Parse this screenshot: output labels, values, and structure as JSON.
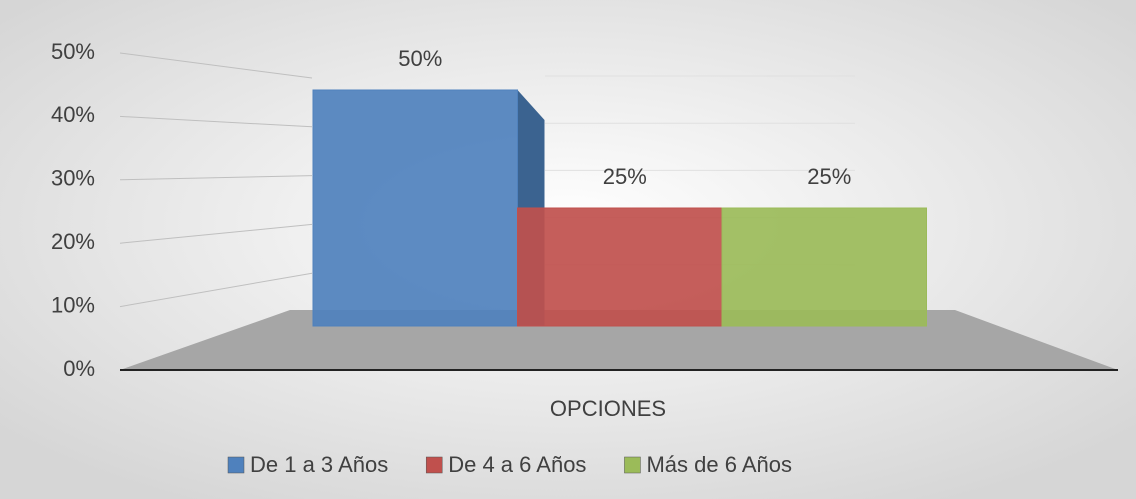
{
  "chart_data": {
    "type": "bar3d",
    "categories": [
      "OPCIONES"
    ],
    "series": [
      {
        "name": "De 1 a 3 Años",
        "color": "#4f81bd",
        "values": [
          50
        ],
        "value_labels": [
          "50%"
        ]
      },
      {
        "name": "De 4 a 6 Años",
        "color": "#c0504d",
        "values": [
          25
        ],
        "value_labels": [
          "25%"
        ]
      },
      {
        "name": "Más de 6 Años",
        "color": "#9bbb59",
        "values": [
          25
        ],
        "value_labels": [
          "25%"
        ]
      }
    ],
    "ylim": [
      0,
      50
    ],
    "yticks": [
      {
        "value": 0,
        "label": "0%"
      },
      {
        "value": 10,
        "label": "10%"
      },
      {
        "value": 20,
        "label": "20%"
      },
      {
        "value": 30,
        "label": "30%"
      },
      {
        "value": 40,
        "label": "40%"
      },
      {
        "value": 50,
        "label": "50%"
      }
    ],
    "grid": true,
    "legend": "bottom"
  }
}
